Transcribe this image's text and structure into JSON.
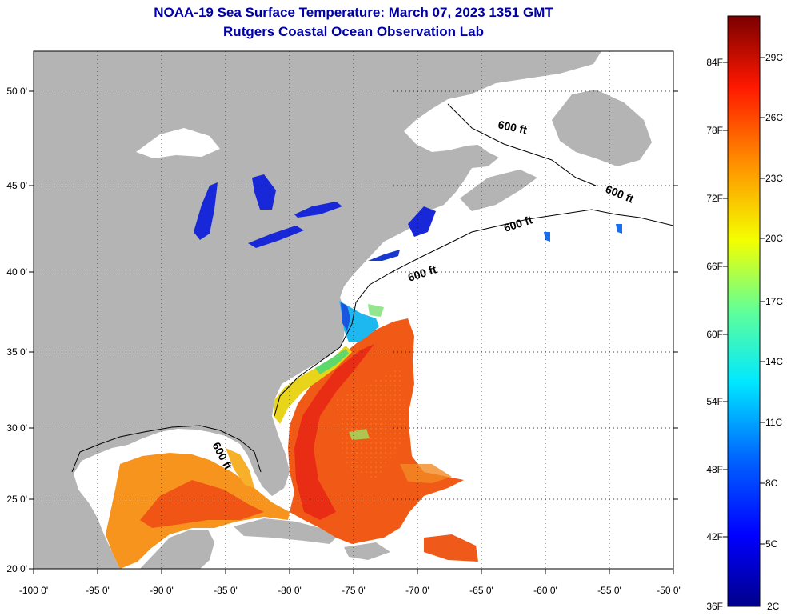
{
  "title": "NOAA-19 Sea Surface Temperature:  March 07, 2023 1351 GMT",
  "subtitle": "Rutgers Coastal Ocean Observation Lab",
  "map": {
    "lon_range": [
      -100,
      -50
    ],
    "lat_range": [
      20,
      52
    ],
    "lon_ticks": [
      "-100 0'",
      "-95 0'",
      "-90 0'",
      "-85 0'",
      "-80 0'",
      "-75 0'",
      "-70 0'",
      "-65 0'",
      "-60 0'",
      "-55 0'",
      "-50 0'"
    ],
    "lat_ticks": [
      "50 0'",
      "45 0'",
      "40 0'",
      "35 0'",
      "30 0'",
      "25 0'",
      "20 0'"
    ],
    "contour_label": "600 ft",
    "land_color": "#b4b4b4",
    "grid": "dotted"
  },
  "colorbar": {
    "fahrenheit": [
      "84F",
      "78F",
      "72F",
      "66F",
      "60F",
      "54F",
      "48F",
      "42F",
      "36F"
    ],
    "celsius": [
      "29C",
      "26C",
      "23C",
      "20C",
      "17C",
      "14C",
      "11C",
      "8C",
      "5C",
      "2C"
    ]
  }
}
